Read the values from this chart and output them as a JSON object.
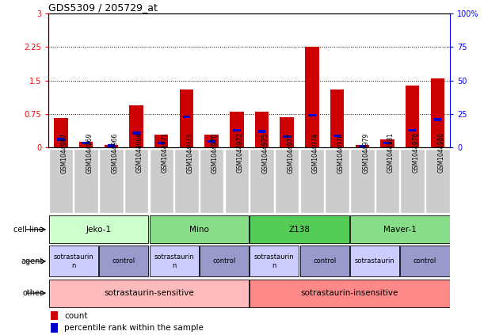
{
  "title": "GDS5309 / 205729_at",
  "samples": [
    "GSM1044967",
    "GSM1044969",
    "GSM1044966",
    "GSM1044968",
    "GSM1044971",
    "GSM1044973",
    "GSM1044970",
    "GSM1044972",
    "GSM1044975",
    "GSM1044977",
    "GSM1044974",
    "GSM1044976",
    "GSM1044979",
    "GSM1044981",
    "GSM1044978",
    "GSM1044980"
  ],
  "red_values": [
    0.65,
    0.12,
    0.05,
    0.95,
    0.28,
    1.3,
    0.28,
    0.8,
    0.8,
    0.68,
    2.25,
    1.3,
    0.05,
    0.18,
    1.38,
    1.55
  ],
  "blue_values": [
    0.18,
    0.1,
    0.04,
    0.32,
    0.1,
    0.68,
    0.14,
    0.38,
    0.36,
    0.24,
    0.72,
    0.26,
    0.03,
    0.1,
    0.38,
    0.62
  ],
  "ylim_left": [
    0,
    3
  ],
  "ylim_right": [
    0,
    100
  ],
  "yticks_left": [
    0,
    0.75,
    1.5,
    2.25,
    3
  ],
  "yticks_right": [
    0,
    25,
    50,
    75,
    100
  ],
  "ytick_labels_left": [
    "0",
    "0.75",
    "1.5",
    "2.25",
    "3"
  ],
  "ytick_labels_right": [
    "0",
    "25",
    "50",
    "75",
    "100%"
  ],
  "cell_line_groups": [
    {
      "label": "Jeko-1",
      "start": 0,
      "end": 3,
      "color": "#ccffcc"
    },
    {
      "label": "Mino",
      "start": 4,
      "end": 7,
      "color": "#88dd88"
    },
    {
      "label": "Z138",
      "start": 8,
      "end": 11,
      "color": "#55cc55"
    },
    {
      "label": "Maver-1",
      "start": 12,
      "end": 15,
      "color": "#88dd88"
    }
  ],
  "agent_groups": [
    {
      "label": "sotrastaurin\nn",
      "start": 0,
      "end": 1,
      "color": "#ccccff"
    },
    {
      "label": "control",
      "start": 2,
      "end": 3,
      "color": "#9999cc"
    },
    {
      "label": "sotrastaurin\nn",
      "start": 4,
      "end": 5,
      "color": "#ccccff"
    },
    {
      "label": "control",
      "start": 6,
      "end": 7,
      "color": "#9999cc"
    },
    {
      "label": "sotrastaurin\nn",
      "start": 8,
      "end": 9,
      "color": "#ccccff"
    },
    {
      "label": "control",
      "start": 10,
      "end": 11,
      "color": "#9999cc"
    },
    {
      "label": "sotrastaurin",
      "start": 12,
      "end": 13,
      "color": "#ccccff"
    },
    {
      "label": "control",
      "start": 14,
      "end": 15,
      "color": "#9999cc"
    }
  ],
  "other_groups": [
    {
      "label": "sotrastaurin-sensitive",
      "start": 0,
      "end": 7,
      "color": "#ffbbbb"
    },
    {
      "label": "sotrastaurin-insensitive",
      "start": 8,
      "end": 15,
      "color": "#ff8888"
    }
  ],
  "row_labels": [
    "cell line",
    "agent",
    "other"
  ],
  "bar_color_red": "#cc0000",
  "bar_color_blue": "#0000cc",
  "sample_box_color": "#cccccc",
  "background_color": "#ffffff"
}
